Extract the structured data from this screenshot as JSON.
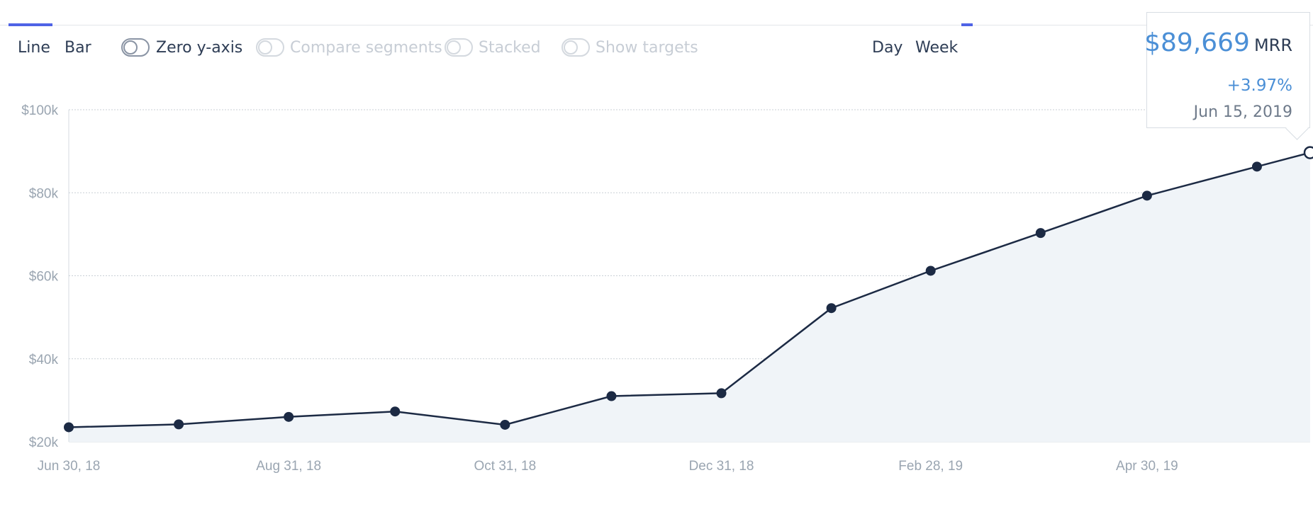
{
  "toolbar": {
    "chart_types": [
      "Line",
      "Bar"
    ],
    "toggles": [
      {
        "label": "Zero y-axis",
        "enabled": true
      },
      {
        "label": "Compare segments",
        "enabled": false
      },
      {
        "label": "Stacked",
        "enabled": false
      },
      {
        "label": "Show targets",
        "enabled": false
      }
    ],
    "intervals": [
      "Day",
      "Week"
    ]
  },
  "tooltip": {
    "value": "$89,669",
    "unit": "MRR",
    "change": "+3.97%",
    "date": "Jun 15, 2019"
  },
  "colors": {
    "accent": "#4f63e6",
    "line": "#1c2a44",
    "area": "#f0f4f8",
    "tooltip_value": "#4b8fd6"
  },
  "chart_data": {
    "type": "area",
    "title": "",
    "xlabel": "",
    "ylabel": "",
    "x_tick_labels": [
      "Jun 30, 18",
      "Aug 31, 18",
      "Oct 31, 18",
      "Dec 31, 18",
      "Feb 28, 19",
      "Apr 30, 19"
    ],
    "y_tick_labels": [
      "$20k",
      "$40k",
      "$60k",
      "$80k",
      "$100k"
    ],
    "y_ticks": [
      20000,
      40000,
      60000,
      80000,
      100000
    ],
    "ylim": [
      20000,
      100000
    ],
    "x": [
      "2018-06-30",
      "2018-07-31",
      "2018-08-31",
      "2018-09-30",
      "2018-10-31",
      "2018-11-30",
      "2018-12-31",
      "2019-01-31",
      "2019-02-28",
      "2019-03-31",
      "2019-04-30",
      "2019-05-31",
      "2019-06-15"
    ],
    "series": [
      {
        "name": "MRR",
        "values": [
          23500,
          24200,
          26000,
          27300,
          24100,
          31000,
          31700,
          52200,
          61200,
          70300,
          79300,
          86300,
          89669
        ]
      }
    ],
    "grid": true,
    "highlighted_point": "2019-06-15"
  }
}
